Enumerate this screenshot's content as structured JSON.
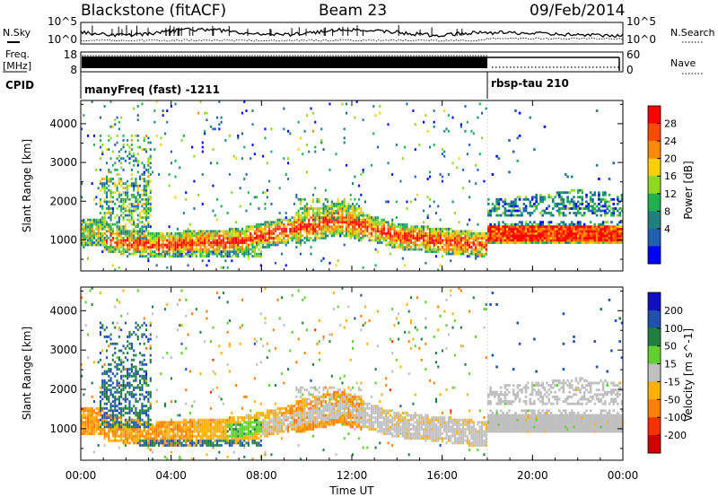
{
  "header": {
    "station": "Blackstone (fitACF)",
    "beam": "Beam 23",
    "date": "09/Feb/2014"
  },
  "panel_labels": {
    "nsky": "N.Sky",
    "nsearch": "N.Search",
    "freq_line1": "Freq.",
    "freq_line2": "[MHz]",
    "nave": "Nave",
    "cpid": "CPID"
  },
  "noise_axis": {
    "left_top": "10^5",
    "left_bottom": "10^0",
    "right_top": "10^5",
    "right_bottom": "10^0"
  },
  "freq_axis": {
    "left_ticks": [
      "18",
      "8"
    ],
    "right_ticks": [
      "60",
      "0"
    ]
  },
  "cpid_modes": [
    {
      "label": "manyFreq (fast) -1211",
      "start_hour": 0,
      "end_hour": 18
    },
    {
      "label": "rbsp-tau 210",
      "start_hour": 18,
      "end_hour": 24
    }
  ],
  "chart_data": [
    {
      "type": "heatmap",
      "name": "power",
      "ylabel": "Slant Range [km]",
      "xlabel": "",
      "xlim": [
        0,
        24
      ],
      "ylim": [
        200,
        4600
      ],
      "x_ticks": [
        "00:00",
        "04:00",
        "08:00",
        "12:00",
        "16:00",
        "20:00",
        "00:00"
      ],
      "y_ticks": [
        1000,
        2000,
        3000,
        4000
      ],
      "colorbar": {
        "label": "Power [dB]",
        "ticks": [
          "28",
          "24",
          "20",
          "16",
          "12",
          "8",
          "4"
        ],
        "colors": [
          "#ff0000",
          "#ff4a00",
          "#ff8c00",
          "#ffd000",
          "#90d820",
          "#20b050",
          "#208080",
          "#2060b0",
          "#0000ff"
        ]
      }
    },
    {
      "type": "heatmap",
      "name": "velocity",
      "ylabel": "Slant Range [km]",
      "xlabel": "Time UT",
      "xlim": [
        0,
        24
      ],
      "ylim": [
        200,
        4600
      ],
      "x_ticks": [
        "00:00",
        "04:00",
        "08:00",
        "12:00",
        "16:00",
        "20:00",
        "00:00"
      ],
      "y_ticks": [
        1000,
        2000,
        3000,
        4000
      ],
      "colorbar": {
        "label": "Velocity [m s^-1]",
        "ticks": [
          "200",
          "100",
          "50",
          "15",
          "-15",
          "-50",
          "-100",
          "-200"
        ],
        "colors": [
          "#1010c0",
          "#2050b0",
          "#208040",
          "#60d030",
          "#c0c0c0",
          "#ffb000",
          "#ff8000",
          "#ff3000",
          "#d00000"
        ]
      }
    }
  ]
}
